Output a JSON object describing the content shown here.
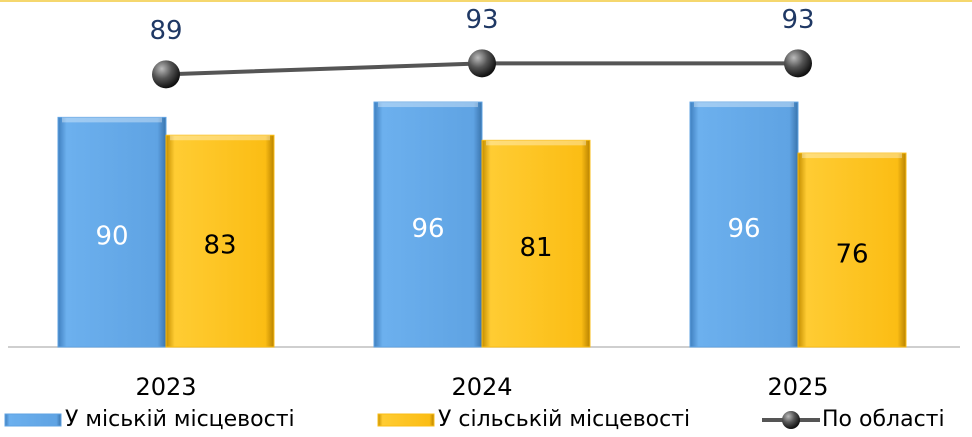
{
  "chart_data": {
    "type": "bar",
    "categories": [
      "2023",
      "2024",
      "2025"
    ],
    "series": [
      {
        "name": "У міській місцевості",
        "color": "#5fa3e3",
        "values": [
          90,
          96,
          96
        ]
      },
      {
        "name": "У сільській місцевості",
        "color": "#fbbd14",
        "values": [
          83,
          81,
          76
        ]
      },
      {
        "name": "По області",
        "color": "#555555",
        "type": "line",
        "axis": "y2",
        "values": [
          89,
          93,
          93
        ]
      }
    ],
    "ylim": [
      0,
      136
    ],
    "y2lim": [
      -10,
      116
    ],
    "legend": "bottom"
  }
}
